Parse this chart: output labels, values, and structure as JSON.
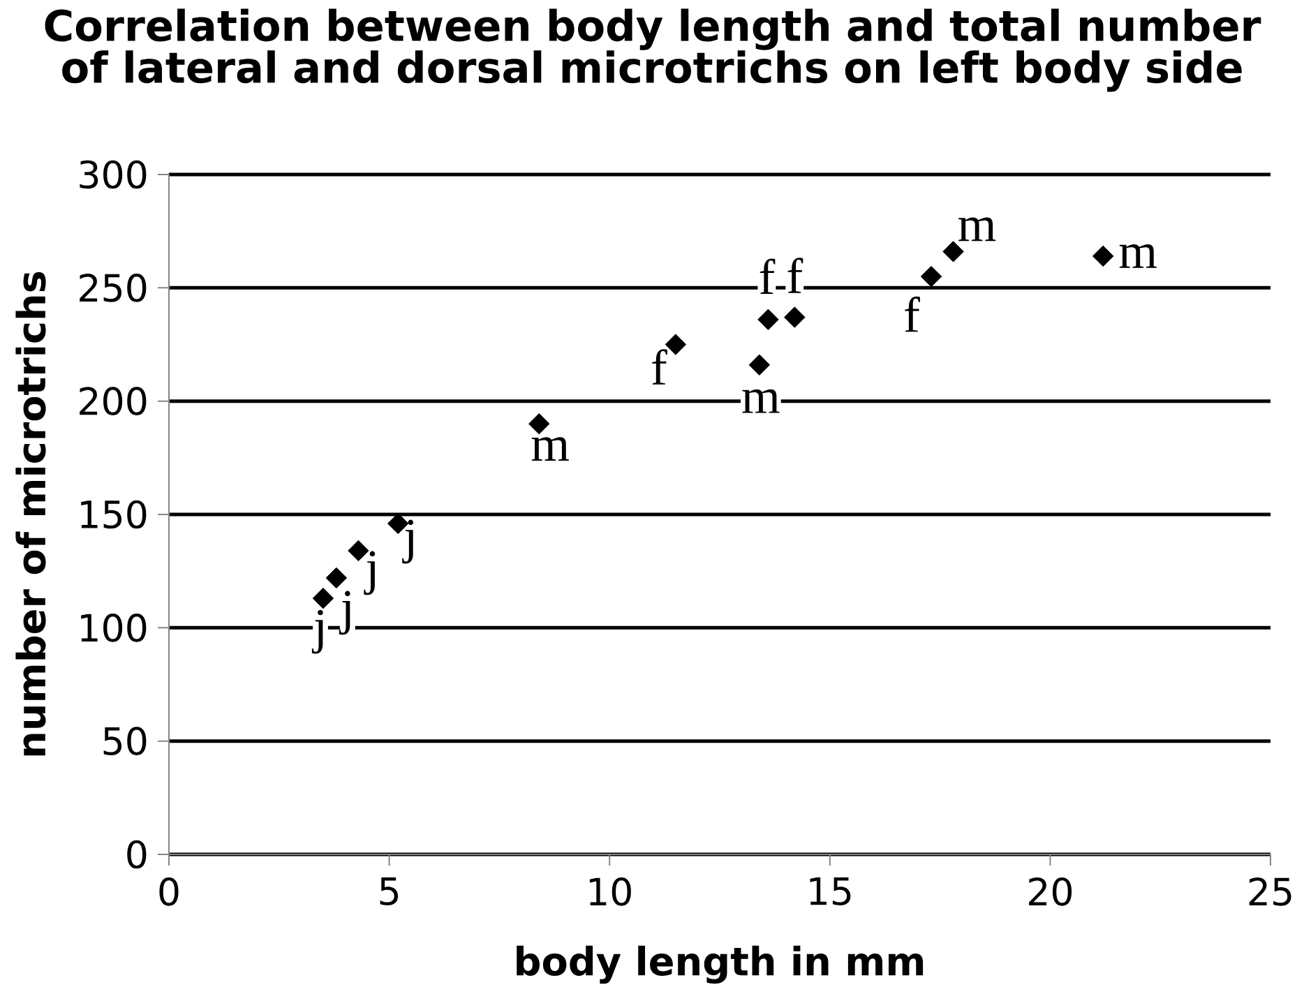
{
  "chart_data": {
    "type": "scatter",
    "title": "Correlation between body length and total number of lateral and dorsal microtrichs on left body side",
    "xlabel": "body length in mm",
    "ylabel": "number of microtrichs",
    "x": [
      3.5,
      3.8,
      4.3,
      5.2,
      8.4,
      11.5,
      13.4,
      13.6,
      14.2,
      17.3,
      17.8,
      21.2
    ],
    "values": [
      113,
      122,
      134,
      146,
      190,
      225,
      216,
      236,
      237,
      255,
      266,
      264
    ],
    "color": "#000000",
    "marker": "diamond",
    "xlim": [
      0,
      25
    ],
    "xticks": [
      0,
      5,
      10,
      15,
      20,
      25
    ],
    "ylim": [
      0,
      300
    ],
    "yticks": [
      0,
      50,
      100,
      150,
      200,
      250,
      300
    ],
    "grid": "y",
    "annotations": [
      {
        "text": "j",
        "x": 3.5,
        "y": 113
      },
      {
        "text": "j",
        "x": 3.8,
        "y": 122
      },
      {
        "text": "j",
        "x": 4.3,
        "y": 134
      },
      {
        "text": "j",
        "x": 5.2,
        "y": 146
      },
      {
        "text": "m",
        "x": 8.4,
        "y": 190
      },
      {
        "text": "f",
        "x": 11.5,
        "y": 225
      },
      {
        "text": "m",
        "x": 13.4,
        "y": 216
      },
      {
        "text": "f",
        "x": 13.6,
        "y": 236
      },
      {
        "text": "f",
        "x": 14.2,
        "y": 237
      },
      {
        "text": "f",
        "x": 17.3,
        "y": 255
      },
      {
        "text": "m",
        "x": 17.8,
        "y": 266
      },
      {
        "text": "m",
        "x": 21.2,
        "y": 264
      }
    ]
  }
}
